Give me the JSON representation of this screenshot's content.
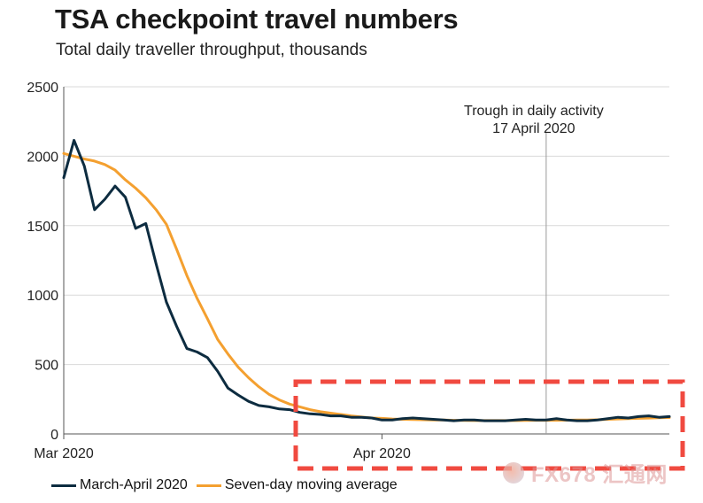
{
  "chart_data": {
    "type": "line",
    "title": "TSA checkpoint travel numbers",
    "subtitle": "Total daily traveller throughput, thousands",
    "xlabel": "",
    "ylabel": "",
    "ylim": [
      0,
      2500
    ],
    "yticks": [
      0,
      500,
      1000,
      1500,
      2000,
      2500
    ],
    "xdomain": [
      0,
      59
    ],
    "xticks": [
      {
        "label": "Mar 2020",
        "x": 0
      },
      {
        "label": "Apr 2020",
        "x": 31
      }
    ],
    "grid": true,
    "legend_position": "bottom-left",
    "series": [
      {
        "name": "March-April 2020",
        "color": "#0d2c40",
        "values": [
          1845,
          2115,
          1930,
          1615,
          1690,
          1785,
          1705,
          1480,
          1515,
          1225,
          950,
          775,
          615,
          590,
          550,
          450,
          330,
          280,
          235,
          205,
          195,
          180,
          175,
          155,
          145,
          140,
          130,
          130,
          120,
          120,
          115,
          100,
          100,
          110,
          115,
          110,
          105,
          100,
          95,
          100,
          100,
          95,
          95,
          95,
          100,
          105,
          100,
          100,
          110,
          100,
          95,
          95,
          100,
          110,
          120,
          115,
          125,
          130,
          120,
          125
        ]
      },
      {
        "name": "Seven-day moving average",
        "color": "#f4a030",
        "values": [
          2020,
          2000,
          1980,
          1965,
          1940,
          1900,
          1830,
          1770,
          1700,
          1615,
          1510,
          1330,
          1140,
          975,
          830,
          680,
          575,
          480,
          405,
          340,
          285,
          245,
          215,
          195,
          175,
          160,
          150,
          140,
          130,
          122,
          115,
          112,
          108,
          105,
          103,
          102,
          100,
          100,
          98,
          97,
          96,
          96,
          96,
          96,
          96,
          97,
          98,
          98,
          98,
          99,
          100,
          100,
          102,
          105,
          108,
          110,
          112,
          114,
          116,
          118
        ]
      }
    ],
    "annotations": [
      {
        "text_lines": [
          "Trough in daily activity",
          "17 April 2020"
        ],
        "x": 47
      }
    ]
  },
  "watermark": {
    "text": "FX678 汇通网"
  }
}
